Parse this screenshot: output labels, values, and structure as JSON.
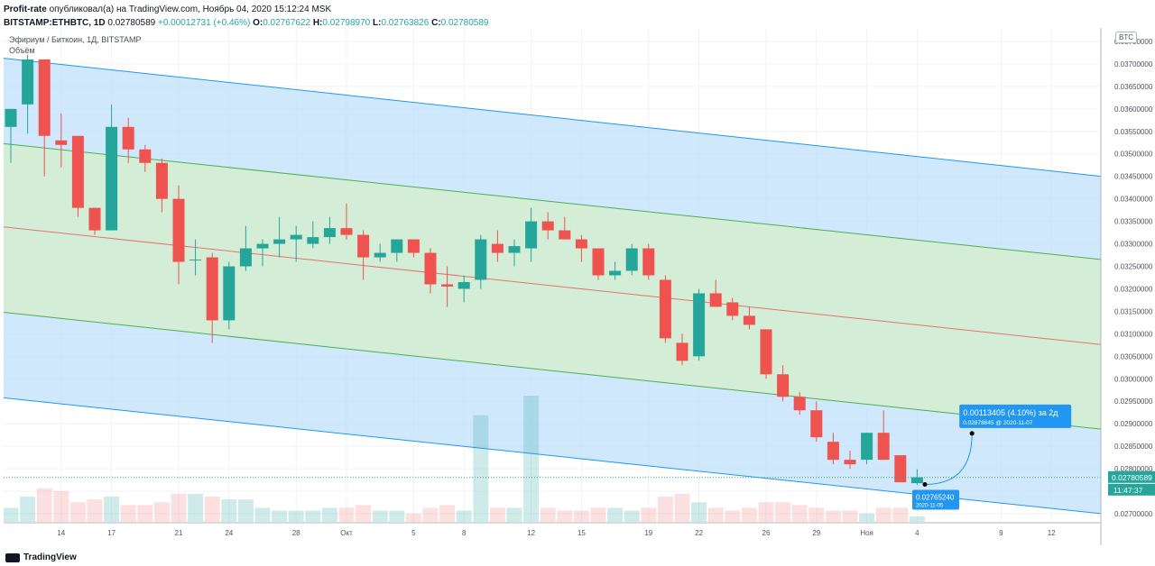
{
  "header": {
    "publisher": "Profit-rate",
    "published_text": "опубликовал(а) на TradingView.com, Ноябрь 04, 2020 15:12:24 MSK",
    "symbol": "BITSTAMP:ETHBTC, 1D",
    "last": "0.02780589",
    "change": "+0.00012731 (+0.46%)",
    "ohlc": {
      "o_label": "O:",
      "o": "0.02767622",
      "h_label": "H:",
      "h": "0.02798970",
      "l_label": "L:",
      "l": "0.02763826",
      "c_label": "C:",
      "c": "0.02780589"
    }
  },
  "legend": {
    "title": "Эфириум / Биткоин, 1Д, BITSTAMP",
    "volume_label": "Объём"
  },
  "currency_badge": "BTC",
  "price_axis_labels": [
    "0.03750000",
    "0.03700000",
    "0.03650000",
    "0.03600000",
    "0.03550000",
    "0.03500000",
    "0.03450000",
    "0.03400000",
    "0.03350000",
    "0.03300000",
    "0.03250000",
    "0.03200000",
    "0.03150000",
    "0.03100000",
    "0.03050000",
    "0.03000000",
    "0.02950000",
    "0.02900000",
    "0.02850000",
    "0.02800000",
    "0.02750000",
    "0.02700000"
  ],
  "price_axis_top_label": "0.0",
  "time_axis_labels": [
    {
      "label": "14",
      "idx": 3
    },
    {
      "label": "17",
      "idx": 6
    },
    {
      "label": "21",
      "idx": 10
    },
    {
      "label": "24",
      "idx": 13
    },
    {
      "label": "28",
      "idx": 17
    },
    {
      "label": "Окт",
      "idx": 20
    },
    {
      "label": "5",
      "idx": 24
    },
    {
      "label": "8",
      "idx": 27
    },
    {
      "label": "12",
      "idx": 31
    },
    {
      "label": "15",
      "idx": 34
    },
    {
      "label": "19",
      "idx": 38
    },
    {
      "label": "22",
      "idx": 41
    },
    {
      "label": "26",
      "idx": 45
    },
    {
      "label": "29",
      "idx": 48
    },
    {
      "label": "Ноя",
      "idx": 51
    },
    {
      "label": "4",
      "idx": 54
    },
    {
      "label": "9",
      "idx": 59
    },
    {
      "label": "12",
      "idx": 62
    }
  ],
  "last_price_tag": "0.02780589",
  "countdown_tag": "11:47:37",
  "annotations": {
    "projection_text": "0.00113405 (4.10%) за 2д",
    "projection_sub": "0.02878645 @ 2020-11-07",
    "low_text": "0.02765240",
    "low_sub": "2020-11-05"
  },
  "footer": {
    "brand": "TradingView"
  },
  "colors": {
    "up": "#26a69a",
    "down": "#ef5350",
    "outer_band": "#bbdefb",
    "inner_band": "#d4edd4",
    "median": "#e57373"
  },
  "chart_data": {
    "type": "candlestick",
    "title": "Эфириум / Биткоин, 1Д, BITSTAMP",
    "ylim": [
      0.0268,
      0.0378
    ],
    "candles": [
      {
        "o": 0.0356,
        "h": 0.036,
        "l": 0.0348,
        "c": 0.036
      },
      {
        "o": 0.0361,
        "h": 0.0372,
        "l": 0.03545,
        "c": 0.0371
      },
      {
        "o": 0.0371,
        "h": 0.0371,
        "l": 0.0345,
        "c": 0.0354
      },
      {
        "o": 0.0353,
        "h": 0.0359,
        "l": 0.0347,
        "c": 0.0352
      },
      {
        "o": 0.0354,
        "h": 0.0354,
        "l": 0.0336,
        "c": 0.0338
      },
      {
        "o": 0.0338,
        "h": 0.0338,
        "l": 0.0332,
        "c": 0.0333
      },
      {
        "o": 0.0333,
        "h": 0.0361,
        "l": 0.0333,
        "c": 0.0356
      },
      {
        "o": 0.0356,
        "h": 0.0358,
        "l": 0.0348,
        "c": 0.0351
      },
      {
        "o": 0.0351,
        "h": 0.0352,
        "l": 0.0346,
        "c": 0.0348
      },
      {
        "o": 0.0348,
        "h": 0.0349,
        "l": 0.0337,
        "c": 0.034
      },
      {
        "o": 0.034,
        "h": 0.0343,
        "l": 0.0321,
        "c": 0.0326
      },
      {
        "o": 0.03265,
        "h": 0.0331,
        "l": 0.0323,
        "c": 0.03265
      },
      {
        "o": 0.0327,
        "h": 0.0328,
        "l": 0.0308,
        "c": 0.0313
      },
      {
        "o": 0.0313,
        "h": 0.0326,
        "l": 0.0311,
        "c": 0.0325
      },
      {
        "o": 0.0325,
        "h": 0.0334,
        "l": 0.0324,
        "c": 0.0329
      },
      {
        "o": 0.0329,
        "h": 0.0331,
        "l": 0.0325,
        "c": 0.033
      },
      {
        "o": 0.033,
        "h": 0.0336,
        "l": 0.0327,
        "c": 0.0331
      },
      {
        "o": 0.0331,
        "h": 0.0334,
        "l": 0.0326,
        "c": 0.0332
      },
      {
        "o": 0.033,
        "h": 0.0335,
        "l": 0.0329,
        "c": 0.03315
      },
      {
        "o": 0.03315,
        "h": 0.0336,
        "l": 0.033,
        "c": 0.03335
      },
      {
        "o": 0.03335,
        "h": 0.0339,
        "l": 0.0331,
        "c": 0.0332
      },
      {
        "o": 0.0332,
        "h": 0.0333,
        "l": 0.0322,
        "c": 0.0327
      },
      {
        "o": 0.0327,
        "h": 0.033,
        "l": 0.0326,
        "c": 0.0328
      },
      {
        "o": 0.0328,
        "h": 0.0331,
        "l": 0.0326,
        "c": 0.0331
      },
      {
        "o": 0.0331,
        "h": 0.0331,
        "l": 0.0327,
        "c": 0.0328
      },
      {
        "o": 0.0328,
        "h": 0.0329,
        "l": 0.0319,
        "c": 0.0321
      },
      {
        "o": 0.0321,
        "h": 0.0325,
        "l": 0.0316,
        "c": 0.03205
      },
      {
        "o": 0.032,
        "h": 0.0323,
        "l": 0.0317,
        "c": 0.03215
      },
      {
        "o": 0.0322,
        "h": 0.0332,
        "l": 0.032,
        "c": 0.0331
      },
      {
        "o": 0.033,
        "h": 0.0333,
        "l": 0.0326,
        "c": 0.0328
      },
      {
        "o": 0.0328,
        "h": 0.0331,
        "l": 0.0325,
        "c": 0.03295
      },
      {
        "o": 0.0329,
        "h": 0.0338,
        "l": 0.0326,
        "c": 0.0335
      },
      {
        "o": 0.0335,
        "h": 0.0337,
        "l": 0.0331,
        "c": 0.0333
      },
      {
        "o": 0.0333,
        "h": 0.0336,
        "l": 0.0331,
        "c": 0.0331
      },
      {
        "o": 0.0331,
        "h": 0.0332,
        "l": 0.0326,
        "c": 0.0329
      },
      {
        "o": 0.0329,
        "h": 0.0329,
        "l": 0.0322,
        "c": 0.0323
      },
      {
        "o": 0.0323,
        "h": 0.0326,
        "l": 0.0322,
        "c": 0.0324
      },
      {
        "o": 0.0324,
        "h": 0.033,
        "l": 0.0323,
        "c": 0.0329
      },
      {
        "o": 0.0329,
        "h": 0.033,
        "l": 0.0322,
        "c": 0.0323
      },
      {
        "o": 0.0322,
        "h": 0.0323,
        "l": 0.0308,
        "c": 0.0309
      },
      {
        "o": 0.0308,
        "h": 0.031,
        "l": 0.0303,
        "c": 0.0304
      },
      {
        "o": 0.0305,
        "h": 0.032,
        "l": 0.0304,
        "c": 0.0319
      },
      {
        "o": 0.0319,
        "h": 0.0322,
        "l": 0.0316,
        "c": 0.0316
      },
      {
        "o": 0.0317,
        "h": 0.0318,
        "l": 0.0313,
        "c": 0.0314
      },
      {
        "o": 0.0314,
        "h": 0.0316,
        "l": 0.0311,
        "c": 0.0312
      },
      {
        "o": 0.0311,
        "h": 0.0311,
        "l": 0.03,
        "c": 0.0301
      },
      {
        "o": 0.0301,
        "h": 0.0303,
        "l": 0.0295,
        "c": 0.0296
      },
      {
        "o": 0.0296,
        "h": 0.0297,
        "l": 0.0292,
        "c": 0.0293
      },
      {
        "o": 0.0293,
        "h": 0.0295,
        "l": 0.0286,
        "c": 0.0287
      },
      {
        "o": 0.0286,
        "h": 0.0288,
        "l": 0.0281,
        "c": 0.0282
      },
      {
        "o": 0.0282,
        "h": 0.0284,
        "l": 0.028,
        "c": 0.0281
      },
      {
        "o": 0.0282,
        "h": 0.0288,
        "l": 0.0281,
        "c": 0.0288
      },
      {
        "o": 0.0288,
        "h": 0.0293,
        "l": 0.0282,
        "c": 0.0282
      },
      {
        "o": 0.0283,
        "h": 0.0283,
        "l": 0.0277,
        "c": 0.0277
      },
      {
        "o": 0.02768,
        "h": 0.02799,
        "l": 0.02764,
        "c": 0.02781
      }
    ],
    "volumes": [
      5,
      9,
      12,
      11,
      7,
      8,
      9,
      6,
      6,
      7,
      10,
      10,
      9,
      8,
      8,
      5,
      4,
      4,
      4,
      5,
      5,
      6,
      4,
      4,
      3,
      5,
      6,
      4,
      38,
      5,
      5,
      45,
      5,
      4,
      4,
      5,
      5,
      4,
      5,
      9,
      10,
      7,
      5,
      4,
      5,
      7,
      7,
      6,
      5,
      4,
      4,
      3,
      5,
      5,
      2
    ],
    "regression_channel": {
      "start_index": 0,
      "end_index": 65,
      "median": [
        0.0334,
        0.03076
      ],
      "inner_upper": [
        0.03525,
        0.03265
      ],
      "inner_lower": [
        0.0315,
        0.02888
      ],
      "outer_upper": [
        0.03715,
        0.0345
      ],
      "outer_lower": [
        0.0296,
        0.027
      ]
    },
    "projection": {
      "from_index": 55,
      "to_index": 57,
      "from_price": 0.0276524,
      "to_price": 0.02878645
    }
  }
}
